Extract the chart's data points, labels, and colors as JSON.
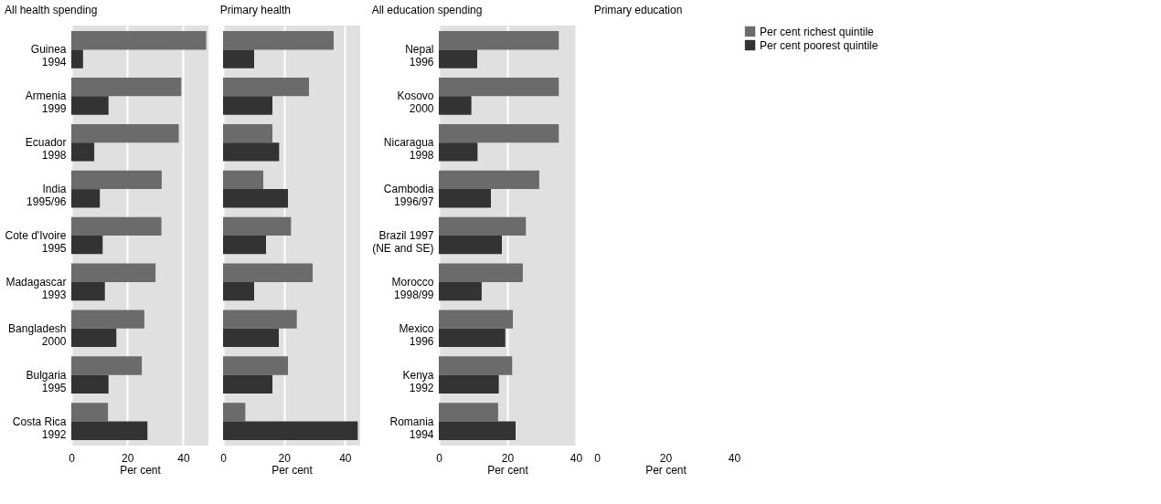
{
  "chart_data": [
    {
      "type": "bar",
      "orientation": "horizontal",
      "title": "All health spending",
      "xlabel": "Per cent",
      "categories": [
        "Guinea\n1994",
        "Armenia\n1999",
        "Ecuador\n1998",
        "India\n1995/96",
        "Cote d'Ivoire\n1995",
        "Madagascar\n1993",
        "Bangladesh\n2000",
        "Bulgaria\n1995",
        "Costa Rica\n1992"
      ],
      "xlim": [
        0,
        49
      ],
      "xticks": [
        0,
        20,
        40
      ],
      "grid": "x",
      "legend": "right",
      "series": [
        {
          "name": "Per cent richest quintile",
          "color": "#6b6b6b",
          "values": [
            48.2,
            39.3,
            38.4,
            32.3,
            32.2,
            30.1,
            26.1,
            25.2,
            13.1
          ]
        },
        {
          "name": "Per cent poorest quintile",
          "color": "#333333",
          "values": [
            4.2,
            13.3,
            8.2,
            10.2,
            11.2,
            12.0,
            16.1,
            13.3,
            27.2
          ]
        }
      ]
    },
    {
      "type": "bar",
      "orientation": "horizontal",
      "title": "Primary health",
      "xlabel": "Per cent",
      "categories": [
        null,
        null,
        null,
        null,
        null,
        null,
        null,
        null,
        null
      ],
      "tick_labels": "x",
      "xlim": [
        0,
        45
      ],
      "xticks": [
        0,
        20,
        40
      ],
      "grid": "x",
      "series": [
        {
          "color": "#6b6b6b",
          "values": [
            36.3,
            28.2,
            16.2,
            13.2,
            22.3,
            29.4,
            24.2,
            21.3,
            7.3
          ]
        },
        {
          "color": "#333333",
          "values": [
            10.2,
            16.2,
            18.4,
            21.3,
            14.1,
            10.2,
            18.3,
            16.2,
            44.2
          ]
        }
      ]
    },
    {
      "type": "bar",
      "orientation": "horizontal",
      "title": "All education spending",
      "xlabel": "Per cent",
      "categories": [
        "Nepal\n1996",
        "Kosovo\n2000",
        "Nicaragua\n1998",
        "Cambodia\n1996/97",
        "Brazil 1997\n(NE and SE)",
        "Morocco\n1998/99",
        "Mexico\n1996",
        "Kenya\n1992",
        "Romania\n1994"
      ],
      "xlim": [
        0,
        40
      ],
      "xticks": [
        0,
        20,
        40
      ],
      "grid": "x",
      "series": [
        {
          "color": "#6b6b6b",
          "values": [
            35,
            35,
            35,
            29.3,
            25.4,
            24.5,
            21.6,
            21.4,
            17.3
          ]
        },
        {
          "color": "#333333",
          "values": [
            11.2,
            9.5,
            11.3,
            15.2,
            18.4,
            12.5,
            19.4,
            17.5,
            22.4
          ]
        }
      ]
    },
    {
      "type": "bar",
      "orientation": "horizontal",
      "title": "Primary education",
      "xlabel": "Per cent",
      "categories": [
        null,
        null,
        null,
        null,
        null,
        null,
        null,
        null,
        null
      ],
      "tick_labels": "x",
      "xlim": [
        0,
        40
      ],
      "xticks": [
        0,
        20,
        40
      ],
      "series": [
        {
          "color": "#6b6b6b",
          "values": [
            null,
            null,
            null,
            null,
            null,
            null,
            null,
            null,
            null
          ]
        },
        {
          "color": "#333333",
          "values": [
            null,
            null,
            null,
            null,
            null,
            null,
            null,
            null,
            null
          ]
        }
      ]
    }
  ]
}
